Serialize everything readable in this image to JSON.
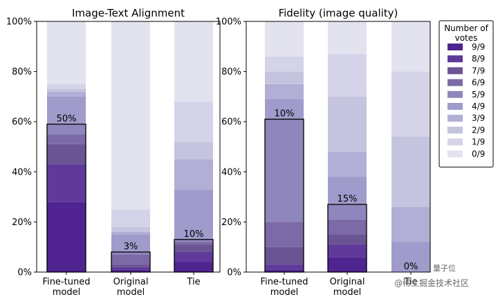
{
  "chart_data": [
    {
      "type": "bar",
      "stacked": true,
      "title": "Image-Text Alignment",
      "categories": [
        "Fine-tuned\nmodel",
        "Original\nmodel",
        "Tie"
      ],
      "ylim": [
        0,
        100
      ],
      "yticks": [
        "0%",
        "20%",
        "40%",
        "60%",
        "80%",
        "100%"
      ],
      "series": [
        {
          "name": "9/9",
          "values": [
            28,
            1,
            4
          ]
        },
        {
          "name": "8/9",
          "values": [
            15,
            1,
            4
          ]
        },
        {
          "name": "7/9",
          "values": [
            8,
            1,
            3
          ]
        },
        {
          "name": "6/9",
          "values": [
            4,
            4,
            1
          ]
        },
        {
          "name": "5/9",
          "values": [
            4,
            1,
            1
          ]
        },
        {
          "name": "4/9",
          "values": [
            11,
            7,
            20
          ]
        },
        {
          "name": "3/9",
          "values": [
            2,
            1,
            12
          ]
        },
        {
          "name": "2/9",
          "values": [
            1,
            2,
            7
          ]
        },
        {
          "name": "1/9",
          "values": [
            2,
            7,
            16
          ]
        },
        {
          "name": "0/9",
          "values": [
            25,
            75,
            32
          ]
        }
      ],
      "highlight_labels": [
        "50%",
        "3%",
        "10%"
      ]
    },
    {
      "type": "bar",
      "stacked": true,
      "title": "Fidelity (image quality)",
      "categories": [
        "Fine-tuned\nmodel",
        "Original\nmodel",
        "Tie"
      ],
      "ylim": [
        0,
        100
      ],
      "yticks": [
        "0%",
        "20%",
        "40%",
        "60%",
        "80%",
        "100%"
      ],
      "series": [
        {
          "name": "9/9",
          "values": [
            1,
            6,
            0
          ]
        },
        {
          "name": "8/9",
          "values": [
            2,
            5,
            0
          ]
        },
        {
          "name": "7/9",
          "values": [
            7,
            4,
            0
          ]
        },
        {
          "name": "6/9",
          "values": [
            10,
            6,
            0
          ]
        },
        {
          "name": "5/9",
          "values": [
            41,
            6,
            0
          ]
        },
        {
          "name": "4/9",
          "values": [
            8,
            11,
            12
          ]
        },
        {
          "name": "3/9",
          "values": [
            6,
            10,
            14
          ]
        },
        {
          "name": "2/9",
          "values": [
            5,
            22,
            28
          ]
        },
        {
          "name": "1/9",
          "values": [
            6,
            17,
            26
          ]
        },
        {
          "name": "0/9",
          "values": [
            14,
            13,
            20
          ]
        }
      ],
      "highlight_labels": [
        "10%",
        "15%",
        "0%"
      ]
    }
  ],
  "legend": {
    "title": "Number of\nvotes",
    "placement": "right",
    "colors": [
      "#4f2490",
      "#5f3a9b",
      "#6a5494",
      "#7b6aa6",
      "#8e86bc",
      "#9f9bcb",
      "#b1afd5",
      "#c5c4df",
      "#d4d3e8",
      "#e3e2ef"
    ]
  },
  "watermark": {
    "line1": "量子位",
    "line2": "@稀土掘金技术社区"
  }
}
